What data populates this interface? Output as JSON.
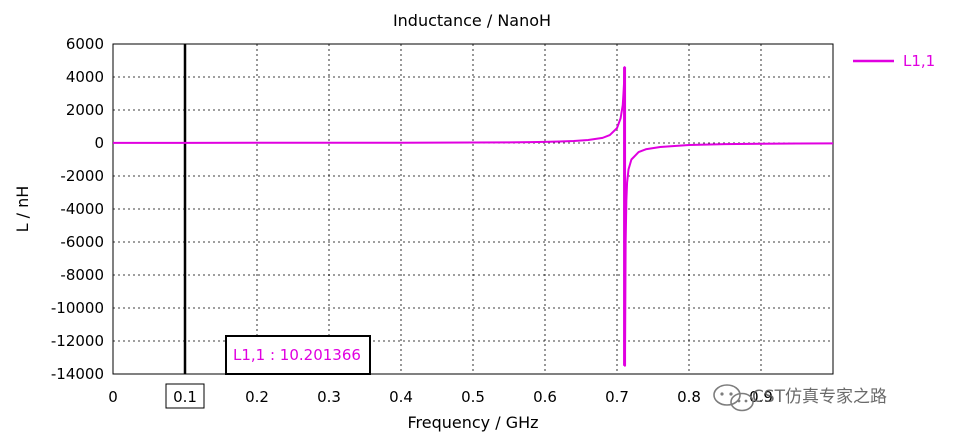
{
  "chart_data": {
    "type": "line",
    "title": "Inductance / NanoH",
    "xlabel": "Frequency / GHz",
    "ylabel": "L / nH",
    "xlim": [
      0,
      1.0
    ],
    "ylim": [
      -14000,
      6000
    ],
    "x_ticks": [
      "0",
      "0.1",
      "0.2",
      "0.3",
      "0.4",
      "0.5",
      "0.6",
      "0.7",
      "0.8",
      "0.9"
    ],
    "y_ticks": [
      "6000",
      "4000",
      "2000",
      "0",
      "-2000",
      "-4000",
      "-6000",
      "-8000",
      "-10000",
      "-12000",
      "-14000"
    ],
    "grid": true,
    "legend_position": "right",
    "series": [
      {
        "name": "L1,1",
        "color": "#e000e0",
        "resonance_x": 0.7105,
        "x": [
          0,
          0.1,
          0.2,
          0.3,
          0.4,
          0.5,
          0.55,
          0.58,
          0.6,
          0.62,
          0.64,
          0.66,
          0.68,
          0.69,
          0.7,
          0.705,
          0.708,
          0.709,
          0.71,
          0.7105,
          0.711,
          0.712,
          0.713,
          0.714,
          0.716,
          0.72,
          0.73,
          0.74,
          0.76,
          0.8,
          0.85,
          0.9,
          0.95,
          1.0
        ],
        "y": [
          10,
          10,
          12,
          14,
          18,
          28,
          40,
          55,
          68,
          90,
          120,
          180,
          310,
          480,
          900,
          1500,
          2300,
          3000,
          3800,
          4600,
          -13500,
          -6000,
          -3500,
          -2400,
          -1600,
          -1000,
          -550,
          -380,
          -240,
          -120,
          -70,
          -45,
          -30,
          -20
        ]
      }
    ],
    "vertical_marker": {
      "x": 0.1,
      "label": "0.1"
    },
    "marker_box": {
      "text": "L1,1 : 10.201366"
    }
  },
  "watermark": {
    "text": "CST仿真专家之路"
  }
}
